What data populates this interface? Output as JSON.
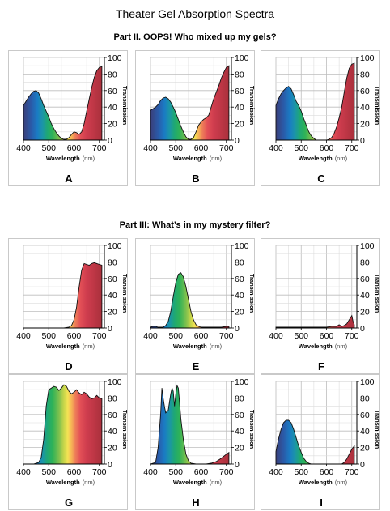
{
  "page_title": "Theater Gel Absorption Spectra",
  "part2_title": "Part II.  OOPS!  Who mixed up my gels?",
  "part3_title": "Part III:  What’s in my mystery filter?",
  "axis": {
    "xlabel": "Wavelength",
    "xunit": "(nm)",
    "ylabel": "Transmission",
    "xticks": [
      400,
      500,
      600,
      700
    ],
    "yticks": [
      0,
      20,
      40,
      60,
      80,
      100
    ],
    "xlim": [
      400,
      720
    ],
    "ylim": [
      0,
      100
    ]
  },
  "chart_data": [
    {
      "type": "area",
      "panel": "A",
      "xlabel": "Wavelength",
      "ylabel": "Transmission",
      "x": [
        400,
        410,
        420,
        430,
        440,
        450,
        460,
        470,
        480,
        490,
        500,
        510,
        520,
        530,
        540,
        550,
        560,
        570,
        580,
        590,
        600,
        610,
        620,
        630,
        640,
        650,
        660,
        670,
        680,
        690,
        700,
        710
      ],
      "y": [
        42,
        47,
        52,
        56,
        59,
        60,
        57,
        50,
        42,
        35,
        28,
        20,
        14,
        9,
        5,
        2,
        1,
        1,
        3,
        7,
        10,
        9,
        7,
        10,
        20,
        35,
        50,
        64,
        76,
        84,
        88,
        89
      ]
    },
    {
      "type": "area",
      "panel": "B",
      "xlabel": "Wavelength",
      "ylabel": "Transmission",
      "x": [
        400,
        410,
        420,
        430,
        440,
        450,
        460,
        470,
        480,
        490,
        500,
        510,
        520,
        530,
        540,
        550,
        560,
        570,
        580,
        590,
        600,
        610,
        620,
        630,
        640,
        650,
        660,
        670,
        680,
        690,
        700,
        710
      ],
      "y": [
        36,
        38,
        40,
        43,
        48,
        51,
        52,
        50,
        46,
        40,
        33,
        25,
        17,
        10,
        4,
        1,
        1,
        3,
        10,
        18,
        22,
        25,
        27,
        30,
        40,
        50,
        58,
        66,
        75,
        82,
        88,
        90
      ]
    },
    {
      "type": "area",
      "panel": "C",
      "xlabel": "Wavelength",
      "ylabel": "Transmission",
      "x": [
        400,
        410,
        420,
        430,
        440,
        450,
        460,
        470,
        480,
        490,
        500,
        510,
        520,
        530,
        540,
        550,
        560,
        570,
        580,
        590,
        600,
        610,
        620,
        630,
        640,
        650,
        660,
        670,
        680,
        690,
        700,
        710
      ],
      "y": [
        42,
        50,
        56,
        60,
        63,
        65,
        62,
        55,
        47,
        42,
        35,
        26,
        18,
        10,
        5,
        2,
        0,
        0,
        0,
        0,
        0,
        1,
        3,
        8,
        16,
        27,
        40,
        58,
        75,
        87,
        92,
        93
      ]
    },
    {
      "type": "area",
      "panel": "D",
      "xlabel": "Wavelength",
      "ylabel": "Transmission",
      "x": [
        400,
        500,
        560,
        580,
        590,
        600,
        610,
        620,
        630,
        640,
        650,
        660,
        670,
        680,
        690,
        700,
        710
      ],
      "y": [
        0,
        0,
        0,
        1,
        3,
        10,
        25,
        50,
        70,
        78,
        77,
        76,
        78,
        79,
        78,
        77,
        76
      ]
    },
    {
      "type": "area",
      "panel": "E",
      "xlabel": "Wavelength",
      "ylabel": "Transmission",
      "x": [
        400,
        410,
        420,
        430,
        440,
        450,
        460,
        470,
        480,
        490,
        500,
        510,
        520,
        530,
        540,
        550,
        560,
        570,
        580,
        590,
        600,
        620,
        640,
        660,
        680,
        700,
        710
      ],
      "y": [
        1,
        2,
        2,
        1,
        1,
        1,
        3,
        8,
        20,
        38,
        55,
        65,
        67,
        62,
        50,
        35,
        20,
        10,
        4,
        2,
        1,
        1,
        1,
        1,
        1,
        2,
        2
      ]
    },
    {
      "type": "area",
      "panel": "F",
      "xlabel": "Wavelength",
      "ylabel": "Transmission",
      "x": [
        400,
        450,
        500,
        550,
        600,
        620,
        640,
        650,
        660,
        670,
        680,
        690,
        700,
        705,
        710
      ],
      "y": [
        1,
        1,
        1,
        1,
        1,
        2,
        2,
        4,
        2,
        3,
        5,
        10,
        15,
        8,
        4
      ]
    },
    {
      "type": "area",
      "panel": "G",
      "xlabel": "Wavelength",
      "ylabel": "Transmission",
      "x": [
        400,
        440,
        460,
        470,
        480,
        490,
        500,
        510,
        520,
        530,
        540,
        550,
        560,
        570,
        580,
        590,
        600,
        610,
        620,
        630,
        640,
        650,
        660,
        670,
        680,
        690,
        700,
        710
      ],
      "y": [
        0,
        0,
        2,
        8,
        30,
        70,
        90,
        92,
        94,
        93,
        89,
        92,
        96,
        94,
        88,
        85,
        87,
        90,
        86,
        84,
        87,
        85,
        81,
        79,
        80,
        83,
        80,
        79
      ]
    },
    {
      "type": "area",
      "panel": "H",
      "xlabel": "Wavelength",
      "ylabel": "Transmission",
      "x": [
        400,
        410,
        420,
        430,
        440,
        445,
        450,
        455,
        460,
        470,
        480,
        485,
        490,
        495,
        500,
        505,
        510,
        515,
        520,
        530,
        540,
        550,
        560,
        580,
        600,
        620,
        640,
        660,
        680,
        700,
        710
      ],
      "y": [
        0,
        1,
        2,
        20,
        60,
        92,
        80,
        70,
        62,
        65,
        85,
        92,
        88,
        70,
        85,
        95,
        92,
        75,
        55,
        30,
        12,
        4,
        1,
        0,
        0,
        0,
        1,
        3,
        7,
        12,
        14
      ]
    },
    {
      "type": "area",
      "panel": "I",
      "xlabel": "Wavelength",
      "ylabel": "Transmission",
      "x": [
        400,
        410,
        420,
        430,
        440,
        450,
        460,
        470,
        480,
        490,
        500,
        510,
        520,
        530,
        540,
        550,
        560,
        580,
        600,
        620,
        640,
        660,
        670,
        680,
        690,
        700,
        710
      ],
      "y": [
        15,
        30,
        42,
        50,
        53,
        53,
        50,
        42,
        32,
        22,
        14,
        7,
        3,
        1,
        0,
        0,
        0,
        0,
        0,
        0,
        0,
        0,
        2,
        6,
        12,
        18,
        22
      ]
    }
  ]
}
